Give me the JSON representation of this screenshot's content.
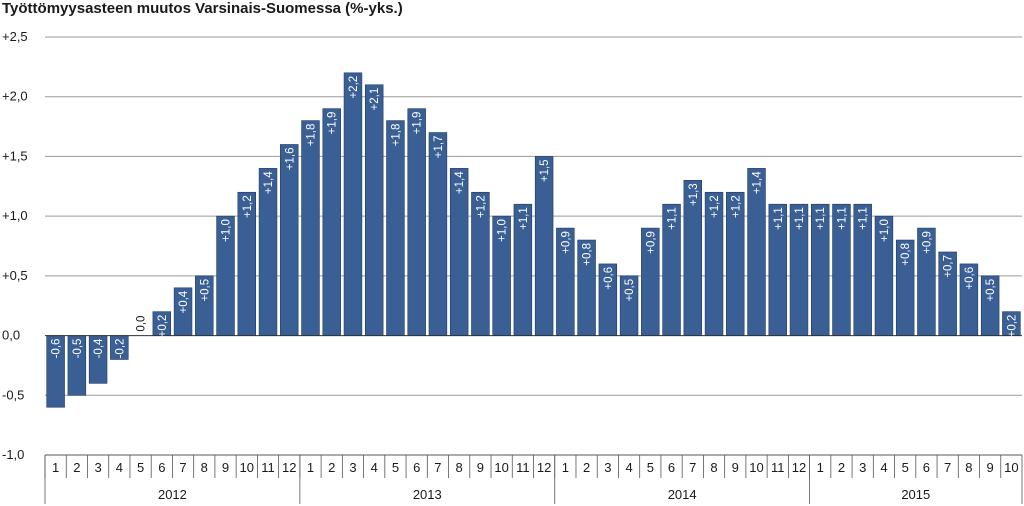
{
  "chart_data": {
    "type": "bar",
    "title": "Työttömyysasteen muutos Varsinais-Suomessa (%-yks.)",
    "xlabel": "",
    "ylabel": "",
    "ylim": [
      -1.0,
      2.5
    ],
    "yticks": [
      -1.0,
      -0.5,
      0.0,
      0.5,
      1.0,
      1.5,
      2.0,
      2.5
    ],
    "ytick_labels": [
      "-1,0",
      "-0,5",
      "0,0",
      "+0,5",
      "+1,0",
      "+1,5",
      "+2,0",
      "+2,5"
    ],
    "grid": true,
    "bar_color": "#3a5f95",
    "grid_color": "#9a9a9a",
    "years": [
      {
        "label": "2012",
        "months": [
          "1",
          "2",
          "3",
          "4",
          "5",
          "6",
          "7",
          "8",
          "9",
          "10",
          "11",
          "12"
        ]
      },
      {
        "label": "2013",
        "months": [
          "1",
          "2",
          "3",
          "4",
          "5",
          "6",
          "7",
          "8",
          "9",
          "10",
          "11",
          "12"
        ]
      },
      {
        "label": "2014",
        "months": [
          "1",
          "2",
          "3",
          "4",
          "5",
          "6",
          "7",
          "8",
          "9",
          "10",
          "11",
          "12"
        ]
      },
      {
        "label": "2015",
        "months": [
          "1",
          "2",
          "3",
          "4",
          "5",
          "6",
          "7",
          "8",
          "9",
          "10"
        ]
      }
    ],
    "values": [
      -0.6,
      -0.5,
      -0.4,
      -0.2,
      0.0,
      0.2,
      0.4,
      0.5,
      1.0,
      1.2,
      1.4,
      1.6,
      1.8,
      1.9,
      2.2,
      2.1,
      1.8,
      1.9,
      1.7,
      1.4,
      1.2,
      1.0,
      1.1,
      1.5,
      0.9,
      0.8,
      0.6,
      0.5,
      0.9,
      1.1,
      1.3,
      1.2,
      1.2,
      1.4,
      1.1,
      1.1,
      1.1,
      1.1,
      1.1,
      1.0,
      0.8,
      0.9,
      0.7,
      0.6,
      0.5,
      0.2
    ],
    "data_labels": [
      "-0,6",
      "-0,5",
      "-0,4",
      "-0,2",
      "0,0",
      "+0,2",
      "+0,4",
      "+0,5",
      "+1,0",
      "+1,2",
      "+1,4",
      "+1,6",
      "+1,8",
      "+1,9",
      "+2,2",
      "+2,1",
      "+1,8",
      "+1,9",
      "+1,7",
      "+1,4",
      "+1,2",
      "+1,0",
      "+1,1",
      "+1,5",
      "+0,9",
      "+0,8",
      "+0,6",
      "+0,5",
      "+0,9",
      "+1,1",
      "+1,3",
      "+1,2",
      "+1,2",
      "+1,4",
      "+1,1",
      "+1,1",
      "+1,1",
      "+1,1",
      "+1,1",
      "+1,0",
      "+0,8",
      "+0,9",
      "+0,7",
      "+0,6",
      "+0,5",
      "+0,2"
    ]
  }
}
